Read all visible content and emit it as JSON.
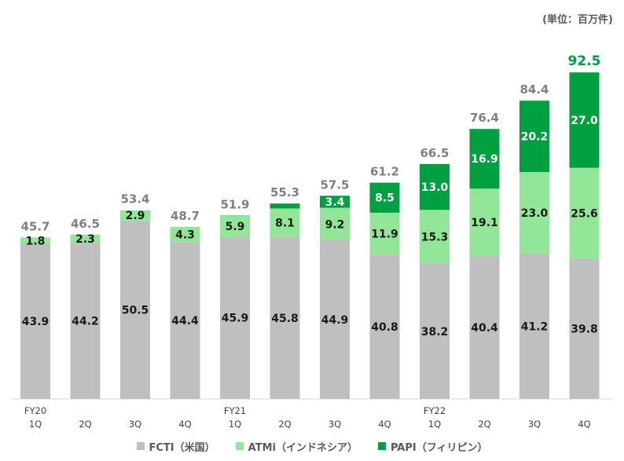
{
  "unit_label": "(単位：百万件)",
  "chart_data": {
    "type": "bar",
    "stacked": true,
    "categories": [
      "FY20\n1Q",
      "2Q",
      "3Q",
      "4Q",
      "FY21\n1Q",
      "2Q",
      "3Q",
      "4Q",
      "FY22\n1Q",
      "2Q",
      "3Q",
      "4Q"
    ],
    "series": [
      {
        "name": "FCTI（米国）",
        "color": "#bfbfbf",
        "values": [
          43.9,
          44.2,
          50.5,
          44.4,
          45.9,
          45.8,
          44.9,
          40.8,
          38.2,
          40.4,
          41.2,
          39.8
        ],
        "labels": [
          "43.9",
          "44.2",
          "50.5",
          "44.4",
          "45.9",
          "45.8",
          "44.9",
          "40.8",
          "38.2",
          "40.4",
          "41.2",
          "39.8"
        ]
      },
      {
        "name": "ATMi（インドネシア）",
        "color": "#92e698",
        "values": [
          1.8,
          2.3,
          2.9,
          4.3,
          5.9,
          8.1,
          9.2,
          11.9,
          15.3,
          19.1,
          23.0,
          25.6
        ],
        "labels": [
          "1.8",
          "2.3",
          "2.9",
          "4.3",
          "5.9",
          "8.1",
          "9.2",
          "11.9",
          "15.3",
          "19.1",
          "23.0",
          "25.6"
        ]
      },
      {
        "name": "PAPI（フィリピン）",
        "color": "#00a040",
        "values": [
          0,
          0,
          0,
          0,
          0.1,
          1.4,
          3.4,
          8.5,
          13.0,
          16.9,
          20.2,
          27.0
        ],
        "labels": [
          "",
          "",
          "",
          "",
          "",
          "",
          "3.4",
          "8.5",
          "13.0",
          "16.9",
          "20.2",
          "27.0"
        ]
      }
    ],
    "totals": [
      "45.7",
      "46.5",
      "53.4",
      "48.7",
      "51.9",
      "55.3",
      "57.5",
      "61.2",
      "66.5",
      "76.4",
      "84.4",
      "92.5"
    ],
    "highlight_total_index": 11,
    "highlight_color": "#00a040",
    "ylim": [
      0,
      100
    ],
    "grid": false,
    "legend_position": "bottom"
  }
}
